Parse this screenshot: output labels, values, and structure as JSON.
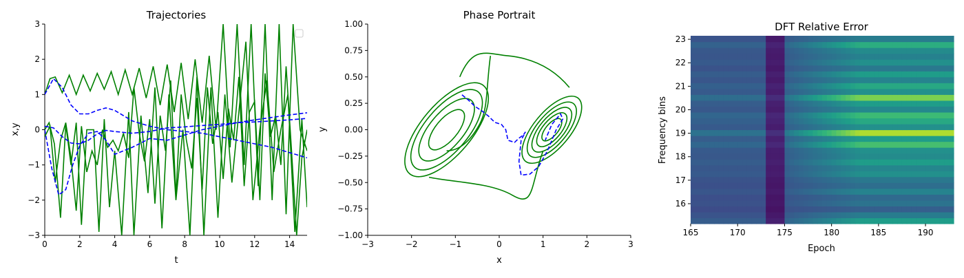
{
  "colors": {
    "green": "#008000",
    "blue": "#0000ff"
  },
  "chart_data": [
    {
      "type": "line",
      "title": "Trajectories",
      "xlabel": "t",
      "ylabel": "x,y",
      "xlim": [
        0,
        15
      ],
      "ylim": [
        -3,
        3
      ],
      "xticks": [
        "0",
        "2",
        "4",
        "6",
        "8",
        "10",
        "12",
        "14"
      ],
      "yticks": [
        "−3",
        "−2",
        "−1",
        "0",
        "1",
        "2",
        "3"
      ],
      "legend": "top-right (empty)",
      "series": [
        {
          "color": "green",
          "style": "solid",
          "x": [
            0,
            0.3,
            0.6,
            1,
            1.4,
            1.8,
            2.2,
            2.6,
            3,
            3.4,
            3.8,
            4.2,
            4.6,
            5,
            5.4,
            5.8,
            6.2,
            6.6,
            7,
            7.4,
            7.8,
            8.2,
            8.6,
            9,
            9.4,
            9.8,
            10.2,
            10.6,
            11,
            11.4,
            11.8,
            12.2,
            12.6,
            13,
            13.4,
            13.8,
            14.2,
            14.6,
            15
          ],
          "values": [
            1.0,
            1.45,
            1.5,
            1.05,
            1.55,
            1.0,
            1.55,
            1.1,
            1.6,
            1.15,
            1.65,
            1.0,
            1.7,
            1.0,
            1.75,
            0.9,
            1.8,
            0.7,
            1.85,
            0.5,
            1.9,
            0.3,
            2.0,
            0.2,
            2.1,
            0.0,
            3.0,
            -0.5,
            3.0,
            -1.0,
            3.0,
            -1.6,
            3.0,
            -2.0,
            3.0,
            -2.4,
            3.0,
            0.0,
            -0.6
          ]
        },
        {
          "color": "green",
          "style": "solid",
          "x": [
            0,
            0.25,
            0.55,
            0.9,
            1.2,
            1.5,
            1.8,
            2.1,
            2.4,
            2.8,
            3.1,
            3.4,
            3.7,
            4.0,
            4.4,
            4.8,
            5.1,
            5.5,
            5.9,
            6.3,
            6.7,
            7.1,
            7.5,
            7.9,
            8.3,
            8.7,
            9.1,
            9.5,
            9.9,
            10.3,
            10.7,
            11.1,
            11.5,
            11.9,
            12.3,
            12.7,
            13.1,
            13.5,
            13.9,
            14.3,
            14.7,
            15
          ],
          "values": [
            0.0,
            0.2,
            -0.4,
            -2.5,
            0.15,
            -1.0,
            0.2,
            -2.7,
            0.0,
            0.0,
            -2.9,
            0.3,
            -2.2,
            -0.6,
            -3.0,
            0.5,
            -3.0,
            0.4,
            -1.8,
            1.2,
            -2.8,
            1.0,
            -2.0,
            0.0,
            -3.0,
            1.5,
            -3.0,
            1.2,
            -2.5,
            1.0,
            -1.5,
            0.5,
            2.5,
            -2.0,
            0.0,
            1.4,
            -1.2,
            0.0,
            1.0,
            -2.9,
            0.3,
            -2.2
          ]
        },
        {
          "color": "green",
          "style": "solid",
          "x": [
            0,
            0.3,
            0.6,
            0.9,
            1.2,
            1.5,
            1.8,
            2.1,
            2.4,
            2.7,
            3.0,
            3.3,
            3.6,
            3.9,
            4.2,
            4.5,
            4.8,
            5.1,
            5.4,
            5.7,
            6.0,
            6.3,
            6.6,
            6.9,
            7.2,
            7.5,
            7.8,
            8.1,
            8.4,
            8.7,
            9.0,
            9.3,
            9.6,
            9.9,
            10.2,
            10.5,
            10.8,
            11.1,
            11.4,
            11.7,
            12.0,
            12.3,
            12.6,
            12.9,
            13.2,
            13.5,
            13.8,
            14.1,
            14.4,
            14.7,
            15
          ],
          "values": [
            -0.2,
            0.1,
            -1.5,
            -0.3,
            0.2,
            -0.8,
            -2.3,
            0.1,
            -1.2,
            -0.6,
            -1.0,
            0.0,
            -0.5,
            -0.3,
            -0.6,
            -0.1,
            -0.8,
            1.2,
            -0.1,
            -0.9,
            0.3,
            -2.1,
            0.4,
            -0.6,
            1.4,
            -1.9,
            1.0,
            -0.3,
            -1.1,
            0.9,
            -1.7,
            1.2,
            -0.4,
            0.5,
            -1.4,
            0.6,
            -0.3,
            1.5,
            -1.6,
            0.5,
            0.8,
            -2.0,
            1.6,
            -0.2,
            0.4,
            -1.0,
            1.8,
            -0.5,
            -3.0,
            -0.8,
            0.0
          ]
        },
        {
          "color": "blue",
          "style": "dashed",
          "x": [
            0,
            0.5,
            1,
            1.5,
            2,
            2.5,
            3,
            3.5,
            4,
            5,
            6,
            7,
            8,
            9,
            10,
            11,
            12,
            13,
            14,
            15
          ],
          "values": [
            1.0,
            1.45,
            1.2,
            0.7,
            0.45,
            0.45,
            0.55,
            0.62,
            0.55,
            0.25,
            0.1,
            0.0,
            -0.05,
            -0.1,
            -0.2,
            -0.3,
            -0.4,
            -0.5,
            -0.65,
            -0.8
          ]
        },
        {
          "color": "blue",
          "style": "dashed",
          "x": [
            0,
            0.4,
            0.8,
            1.2,
            1.6,
            2,
            2.5,
            3,
            3.5,
            4,
            5,
            6,
            7,
            8,
            9,
            10,
            11,
            12,
            13,
            14,
            15
          ],
          "values": [
            0.0,
            -1.1,
            -1.85,
            -1.7,
            -1.0,
            -0.45,
            -0.1,
            -0.05,
            -0.3,
            -0.7,
            -0.5,
            -0.25,
            -0.3,
            -0.15,
            0.0,
            0.1,
            0.2,
            0.28,
            0.35,
            0.42,
            0.48
          ]
        },
        {
          "color": "blue",
          "style": "dashed",
          "x": [
            0,
            0.5,
            1,
            1.5,
            2,
            2.5,
            3,
            3.5,
            4,
            5,
            6,
            7,
            8,
            9,
            10,
            11,
            12,
            13,
            14,
            15
          ],
          "values": [
            0.1,
            0.05,
            -0.2,
            -0.38,
            -0.4,
            -0.3,
            -0.12,
            -0.02,
            -0.05,
            -0.1,
            -0.05,
            0.05,
            0.08,
            0.12,
            0.15,
            0.2,
            0.22,
            0.25,
            0.28,
            0.32
          ]
        }
      ]
    },
    {
      "type": "line",
      "title": "Phase Portrait",
      "xlabel": "x",
      "ylabel": "y",
      "xlim": [
        -3,
        3
      ],
      "ylim": [
        -1,
        1
      ],
      "xticks": [
        "−3",
        "−2",
        "−1",
        "0",
        "1",
        "2",
        "3"
      ],
      "yticks": [
        "−1.00",
        "−0.75",
        "−0.50",
        "−0.25",
        "0.00",
        "0.25",
        "0.50",
        "0.75",
        "1.00"
      ],
      "attractor": {
        "color": "green",
        "left_center": [
          -1.2,
          0.0
        ],
        "right_center": [
          1.2,
          0.0
        ],
        "left_radii_x": [
          0.45,
          0.7,
          0.9,
          1.05
        ],
        "right_radii_x": [
          0.25,
          0.38,
          0.5,
          0.62,
          0.75
        ]
      },
      "series": [
        {
          "color": "blue",
          "style": "dashed",
          "x": [
            -0.85,
            -0.7,
            -0.55,
            -0.4,
            -0.25,
            -0.1,
            0.05,
            0.15,
            0.2,
            0.35,
            0.45,
            0.55,
            0.6,
            0.5,
            0.45,
            0.5,
            0.7,
            0.9,
            1.1,
            1.3,
            1.45,
            1.4,
            1.2,
            1.05
          ],
          "values": [
            0.33,
            0.28,
            0.22,
            0.18,
            0.13,
            0.07,
            0.05,
            0.0,
            -0.1,
            -0.12,
            -0.08,
            -0.05,
            -0.02,
            -0.1,
            -0.3,
            -0.43,
            -0.42,
            -0.35,
            -0.2,
            0.0,
            0.1,
            0.15,
            0.05,
            -0.1
          ]
        }
      ]
    },
    {
      "type": "heatmap",
      "title": "DFT Relative Error",
      "xlabel": "Epoch",
      "ylabel": "Frequency bins",
      "xlim": [
        165,
        193
      ],
      "ylim": [
        15.15,
        23.15
      ],
      "xticks": [
        "165",
        "170",
        "175",
        "180",
        "185",
        "190"
      ],
      "yticks": [
        "16",
        "17",
        "18",
        "19",
        "20",
        "21",
        "22",
        "23"
      ],
      "colormap": "viridis",
      "rows": 32,
      "row_intensity": [
        0.55,
        0.42,
        0.3,
        0.38,
        0.34,
        0.45,
        0.36,
        0.4,
        0.5,
        0.46,
        0.55,
        0.48,
        0.5,
        0.7,
        0.55,
        0.88,
        0.5,
        0.6,
        0.68,
        0.47,
        0.55,
        0.8,
        0.5,
        0.6,
        0.45,
        0.55,
        0.4,
        0.5,
        0.44,
        0.48,
        0.62,
        0.42
      ]
    }
  ]
}
